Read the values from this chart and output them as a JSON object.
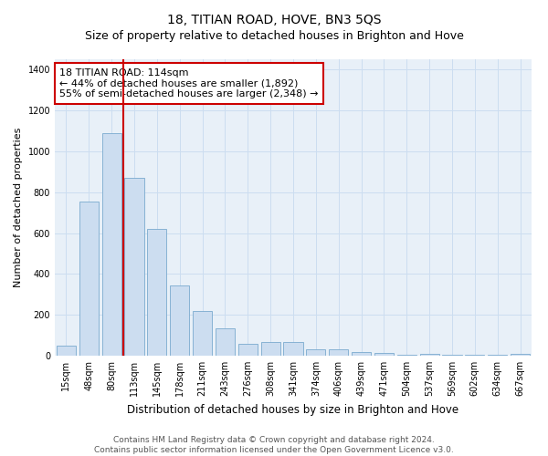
{
  "title": "18, TITIAN ROAD, HOVE, BN3 5QS",
  "subtitle": "Size of property relative to detached houses in Brighton and Hove",
  "xlabel": "Distribution of detached houses by size in Brighton and Hove",
  "ylabel": "Number of detached properties",
  "categories": [
    "15sqm",
    "48sqm",
    "80sqm",
    "113sqm",
    "145sqm",
    "178sqm",
    "211sqm",
    "243sqm",
    "276sqm",
    "308sqm",
    "341sqm",
    "374sqm",
    "406sqm",
    "439sqm",
    "471sqm",
    "504sqm",
    "537sqm",
    "569sqm",
    "602sqm",
    "634sqm",
    "667sqm"
  ],
  "values": [
    50,
    755,
    1090,
    870,
    620,
    345,
    220,
    135,
    60,
    65,
    65,
    30,
    30,
    20,
    15,
    5,
    10,
    5,
    5,
    5,
    10
  ],
  "bar_color": "#ccddf0",
  "bar_edge_color": "#7aaace",
  "vline_color": "#cc0000",
  "annotation_line1": "18 TITIAN ROAD: 114sqm",
  "annotation_line2": "← 44% of detached houses are smaller (1,892)",
  "annotation_line3": "55% of semi-detached houses are larger (2,348) →",
  "annotation_box_facecolor": "#ffffff",
  "annotation_box_edgecolor": "#cc0000",
  "ylim": [
    0,
    1450
  ],
  "yticks": [
    0,
    200,
    400,
    600,
    800,
    1000,
    1200,
    1400
  ],
  "grid_color": "#ccddf0",
  "background_color": "#e8f0f8",
  "footer_line1": "Contains HM Land Registry data © Crown copyright and database right 2024.",
  "footer_line2": "Contains public sector information licensed under the Open Government Licence v3.0.",
  "title_fontsize": 10,
  "subtitle_fontsize": 9,
  "xlabel_fontsize": 8.5,
  "ylabel_fontsize": 8,
  "tick_fontsize": 7,
  "annotation_fontsize": 8,
  "footer_fontsize": 6.5,
  "vline_index": 3
}
